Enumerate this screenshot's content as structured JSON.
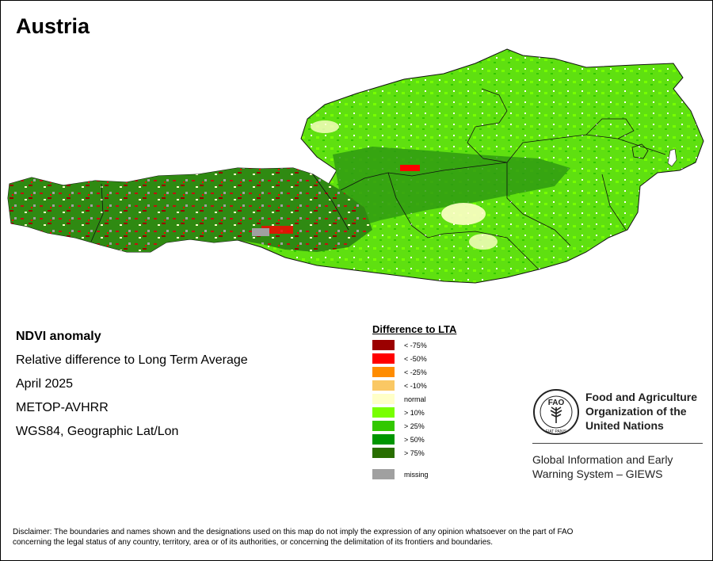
{
  "map": {
    "title": "Austria",
    "info": {
      "heading": "NDVI anomaly",
      "description": "Relative difference to Long Term Average",
      "date": "April 2025",
      "sensor": "METOP-AVHRR",
      "projection": "WGS84, Geographic Lat/Lon"
    },
    "legend": {
      "title": "Difference to LTA",
      "items": [
        {
          "label": "< -75%",
          "color": "#9b0000"
        },
        {
          "label": "< -50%",
          "color": "#ff0000"
        },
        {
          "label": "< -25%",
          "color": "#ff8c00"
        },
        {
          "label": "< -10%",
          "color": "#fac864"
        },
        {
          "label": "normal",
          "color": "#ffffc8"
        },
        {
          "label": "> 10%",
          "color": "#78ff00"
        },
        {
          "label": "> 25%",
          "color": "#32c800"
        },
        {
          "label": "> 50%",
          "color": "#009600"
        },
        {
          "label": "> 75%",
          "color": "#286e00"
        }
      ],
      "missing": {
        "label": "missing",
        "color": "#a0a0a0"
      }
    },
    "organization": {
      "name_line1": "Food and Agriculture",
      "name_line2": "Organization of the",
      "name_line3": "United Nations",
      "logo_text": "FAO",
      "motto": "FIAT PANIS",
      "system_line1": "Global Information and Early",
      "system_line2": "Warning System – GIEWS"
    },
    "disclaimer_line1": "Disclaimer: The boundaries and names shown and the designations used on this map do not imply the expression of any opinion whatsoever on the part of FAO",
    "disclaimer_line2": "concerning the legal status of any country, territory, area or of its authorities, or concerning the delimitation of its frontiers and boundaries."
  }
}
